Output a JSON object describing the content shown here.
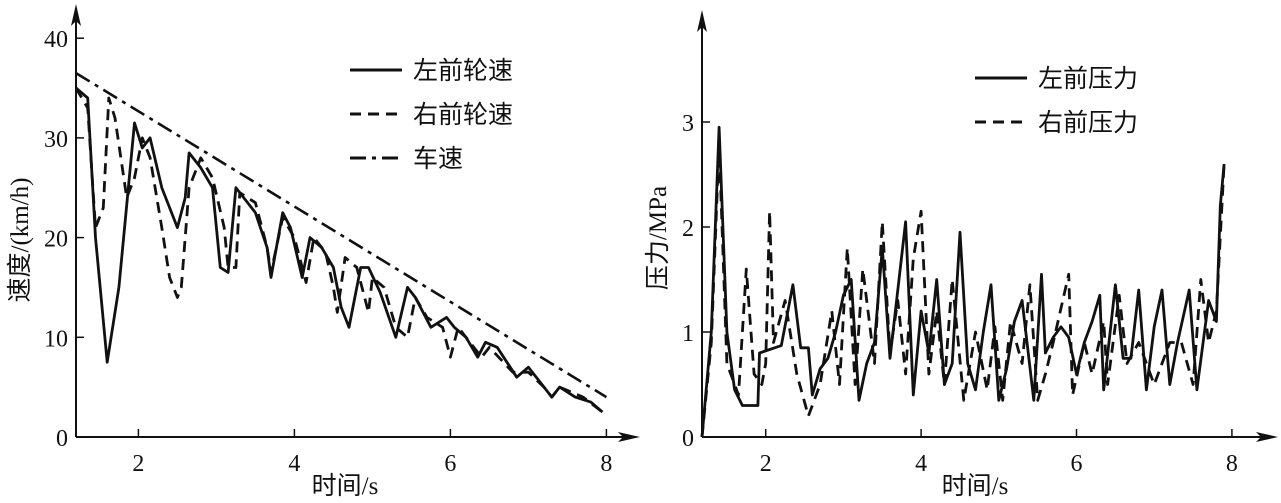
{
  "chart_data": [
    {
      "type": "line",
      "xlabel": "时间/s",
      "ylabel": "速度/(km/h)",
      "xlim": [
        1.2,
        8
      ],
      "ylim": [
        0,
        40
      ],
      "xticks": [
        2,
        4,
        6,
        8
      ],
      "yticks": [
        0,
        10,
        20,
        30,
        40
      ],
      "grid": false,
      "legend_position": "top-right",
      "series": [
        {
          "name": "左前轮速",
          "style": "solid",
          "x": [
            1.2,
            1.35,
            1.45,
            1.6,
            1.75,
            1.95,
            2.05,
            2.15,
            2.3,
            2.5,
            2.6,
            2.65,
            2.8,
            2.95,
            3.05,
            3.15,
            3.25,
            3.35,
            3.5,
            3.65,
            3.7,
            3.85,
            3.95,
            4.1,
            4.2,
            4.35,
            4.5,
            4.6,
            4.7,
            4.85,
            4.95,
            5.1,
            5.3,
            5.45,
            5.55,
            5.75,
            5.95,
            6.05,
            6.2,
            6.35,
            6.45,
            6.6,
            6.85,
            7.0,
            7.2,
            7.3,
            7.4,
            7.6,
            7.8,
            7.95
          ],
          "y": [
            35,
            34,
            20,
            7.5,
            15,
            31.5,
            29,
            30,
            25,
            21,
            24,
            28.5,
            27,
            25,
            17,
            16.5,
            25,
            24,
            22.5,
            19,
            16,
            22.5,
            21,
            16,
            20,
            19,
            17,
            13,
            11,
            17,
            17,
            14.5,
            10,
            15,
            14,
            11,
            12,
            11,
            10,
            8,
            9.5,
            9,
            6,
            7,
            5,
            4,
            5,
            4,
            3.5,
            2.5
          ]
        },
        {
          "name": "右前轮速",
          "style": "dashed",
          "x": [
            1.2,
            1.35,
            1.45,
            1.55,
            1.62,
            1.7,
            1.85,
            1.95,
            2.05,
            2.15,
            2.3,
            2.4,
            2.5,
            2.55,
            2.65,
            2.8,
            2.95,
            3.1,
            3.15,
            3.25,
            3.3,
            3.5,
            3.65,
            3.7,
            3.85,
            4.0,
            4.15,
            4.25,
            4.4,
            4.5,
            4.55,
            4.65,
            4.8,
            4.95,
            5.0,
            5.15,
            5.3,
            5.45,
            5.55,
            5.7,
            5.9,
            6.0,
            6.1,
            6.3,
            6.4,
            6.5,
            6.8,
            7.0,
            7.2,
            7.3,
            7.4,
            7.7,
            7.95
          ],
          "y": [
            35,
            33,
            21,
            23,
            34,
            32,
            24,
            26,
            30,
            28,
            21,
            16,
            14,
            15,
            25,
            28,
            26,
            21,
            17,
            17,
            24.5,
            23.5,
            19,
            16.5,
            22,
            20,
            15.5,
            20,
            18.5,
            15,
            12.5,
            18,
            17,
            12.5,
            16,
            15,
            11,
            10,
            14,
            12,
            11,
            8,
            11,
            9,
            8,
            9,
            6.5,
            6.5,
            5,
            4,
            5,
            4,
            2.5
          ]
        },
        {
          "name": "车速",
          "style": "dash-dot",
          "x": [
            1.2,
            8.0
          ],
          "y": [
            36.5,
            4.0
          ]
        }
      ]
    },
    {
      "type": "line",
      "xlabel": "时间/s",
      "ylabel": "压力/MPa",
      "xlim": [
        1.18,
        8
      ],
      "ylim": [
        0,
        3.5
      ],
      "xticks": [
        2,
        4,
        6,
        8
      ],
      "yticks": [
        0,
        1,
        2,
        3
      ],
      "grid": false,
      "legend_position": "top-right",
      "series": [
        {
          "name": "左前压力",
          "style": "solid",
          "x": [
            1.18,
            1.3,
            1.4,
            1.5,
            1.6,
            1.7,
            1.9,
            1.92,
            2.2,
            2.35,
            2.45,
            2.55,
            2.6,
            2.7,
            2.8,
            2.9,
            3.0,
            3.1,
            3.2,
            3.3,
            3.4,
            3.5,
            3.6,
            3.7,
            3.8,
            3.9,
            4.0,
            4.1,
            4.2,
            4.3,
            4.4,
            4.5,
            4.6,
            4.7,
            4.8,
            4.9,
            5.0,
            5.1,
            5.2,
            5.3,
            5.45,
            5.55,
            5.6,
            5.7,
            5.8,
            5.9,
            6.0,
            6.1,
            6.2,
            6.3,
            6.35,
            6.5,
            6.6,
            6.7,
            6.8,
            6.9,
            7.0,
            7.1,
            7.2,
            7.3,
            7.45,
            7.55,
            7.7,
            7.8,
            7.85,
            7.9
          ],
          "y": [
            0,
            1.0,
            2.95,
            1.0,
            0.45,
            0.3,
            0.3,
            0.8,
            0.87,
            1.45,
            0.85,
            0.85,
            0.4,
            0.65,
            0.75,
            1.0,
            1.35,
            1.5,
            0.35,
            0.7,
            0.9,
            1.8,
            0.75,
            1.4,
            2.05,
            0.4,
            1.2,
            0.8,
            1.5,
            0.5,
            0.7,
            1.95,
            0.7,
            0.45,
            1.0,
            1.45,
            0.35,
            0.65,
            1.1,
            1.3,
            0.35,
            1.55,
            0.8,
            0.95,
            1.05,
            0.95,
            0.6,
            0.9,
            1.1,
            1.35,
            0.45,
            1.45,
            0.75,
            0.75,
            1.4,
            0.45,
            1.05,
            1.4,
            0.5,
            0.9,
            1.4,
            0.45,
            1.3,
            1.1,
            2.2,
            2.6
          ]
        },
        {
          "name": "右前压力",
          "style": "dashed",
          "x": [
            1.18,
            1.3,
            1.4,
            1.5,
            1.65,
            1.75,
            1.85,
            1.95,
            2.0,
            2.05,
            2.1,
            2.25,
            2.4,
            2.55,
            2.7,
            2.85,
            2.95,
            3.05,
            3.15,
            3.25,
            3.4,
            3.5,
            3.6,
            3.7,
            3.8,
            3.9,
            4.0,
            4.1,
            4.2,
            4.3,
            4.4,
            4.55,
            4.7,
            4.85,
            4.95,
            5.05,
            5.15,
            5.3,
            5.4,
            5.5,
            5.6,
            5.7,
            5.9,
            5.95,
            6.1,
            6.2,
            6.35,
            6.4,
            6.55,
            6.65,
            6.8,
            7.0,
            7.2,
            7.35,
            7.5,
            7.6,
            7.7,
            7.8,
            7.9
          ],
          "y": [
            0,
            0.9,
            2.8,
            0.7,
            0.4,
            1.6,
            0.6,
            0.5,
            0.7,
            2.15,
            0.9,
            1.3,
            0.6,
            0.2,
            0.5,
            1.2,
            0.5,
            1.8,
            0.5,
            1.6,
            0.7,
            2.05,
            0.8,
            1.3,
            0.6,
            1.7,
            2.15,
            0.6,
            1.2,
            0.5,
            1.5,
            0.35,
            1.0,
            0.45,
            1.05,
            0.35,
            1.1,
            0.7,
            1.45,
            0.35,
            0.6,
            0.9,
            1.55,
            0.4,
            0.9,
            0.6,
            1.1,
            0.5,
            1.35,
            0.7,
            0.9,
            0.5,
            0.9,
            0.9,
            0.5,
            1.5,
            0.9,
            1.2,
            2.6
          ]
        }
      ]
    }
  ]
}
